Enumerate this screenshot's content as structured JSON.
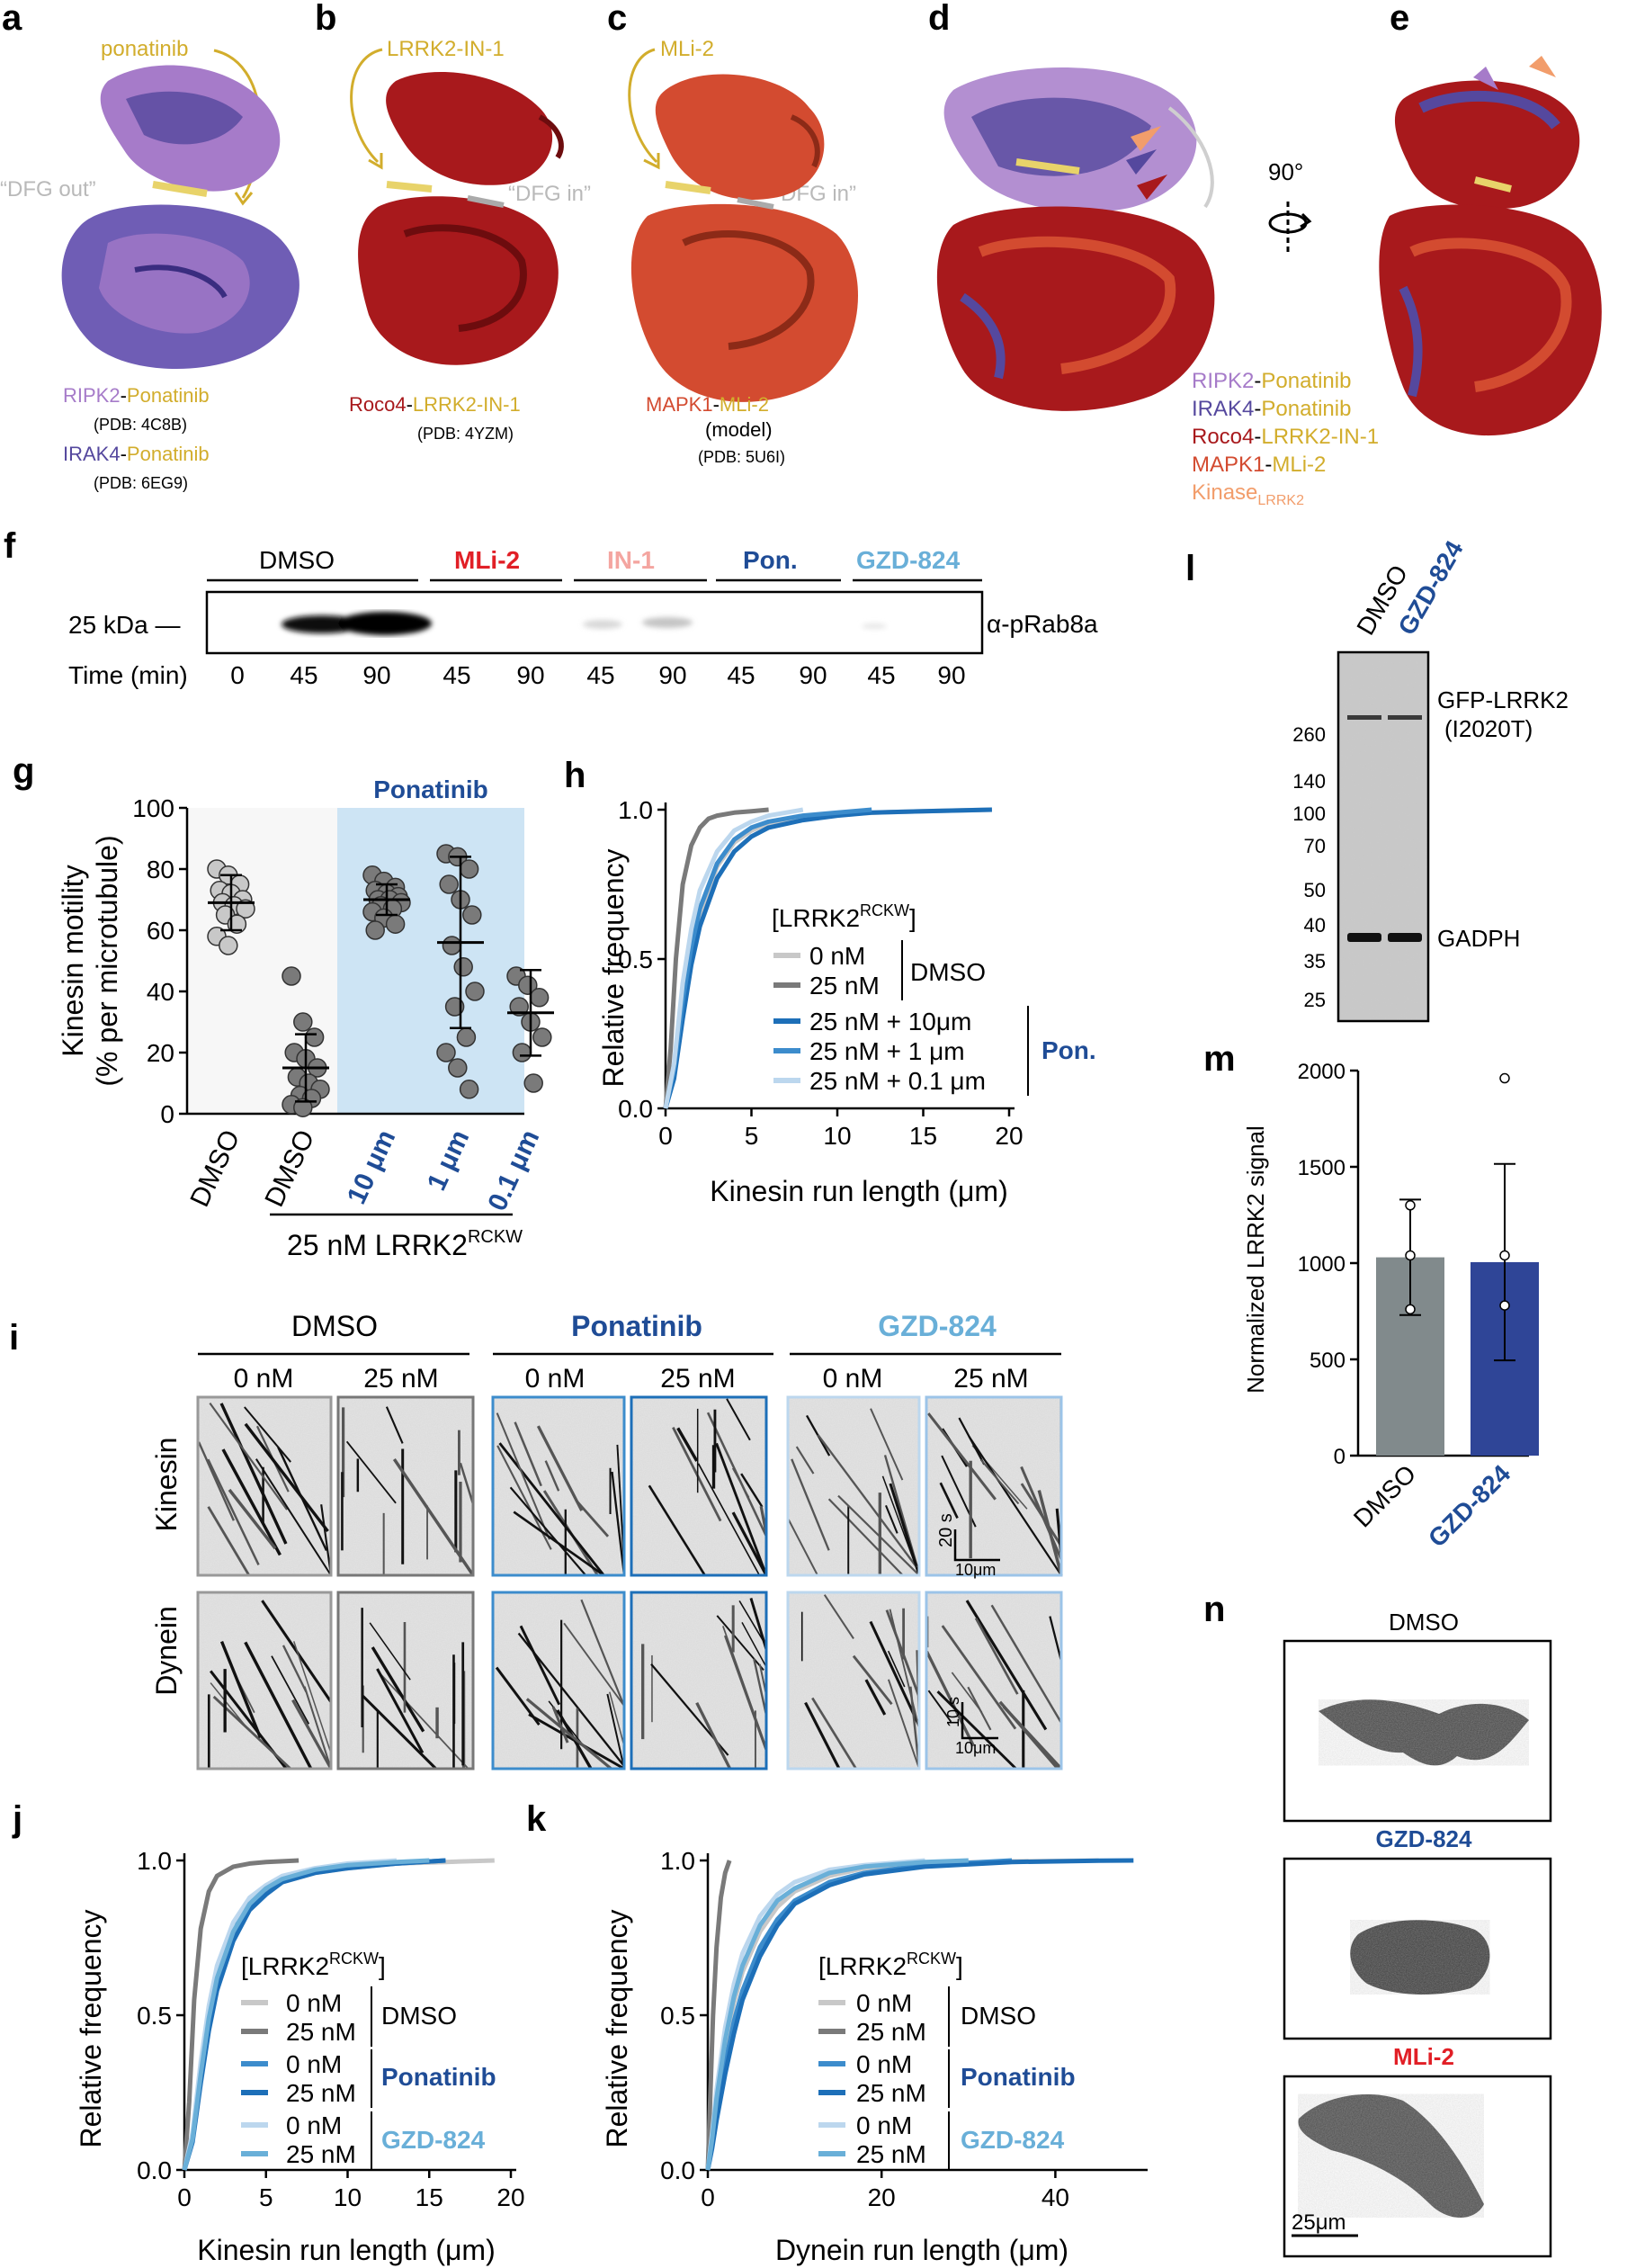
{
  "panels": {
    "a": {
      "letter": "a",
      "inhibitor": "ponatinib",
      "dfg": "“DFG out”",
      "cap1_k": "RIPK2",
      "cap1_i": "Ponatinib",
      "cap1_pdb": "(PDB: 4C8B)",
      "cap2_k": "IRAK4",
      "cap2_i": "Ponatinib",
      "cap2_pdb": "(PDB: 6EG9)"
    },
    "b": {
      "letter": "b",
      "inhibitor": "LRRK2-IN-1",
      "dfg": "“DFG in”",
      "cap_k": "Roco4",
      "cap_i": "LRRK2-IN-1",
      "cap_pdb": "(PDB: 4YZM)"
    },
    "c": {
      "letter": "c",
      "inhibitor": "MLi-2",
      "dfg": "“DFG in”",
      "cap_k": "MAPK1",
      "cap_i": "MLi-2",
      "cap_model": "(model)",
      "cap_pdb": "(PDB: 5U6I)"
    },
    "d": {
      "letter": "d",
      "rotation": "90°",
      "legend": [
        {
          "k": "RIPK2",
          "i": "Ponatinib"
        },
        {
          "k": "IRAK4",
          "i": "Ponatinib"
        },
        {
          "k": "Roco4",
          "i": "LRRK2-IN-1"
        },
        {
          "k": "MAPK1",
          "i": "MLi-2"
        },
        {
          "k": "Kinase",
          "sub": "LRRK2"
        }
      ]
    },
    "e": {
      "letter": "e"
    },
    "f": {
      "letter": "f",
      "groups": [
        "DMSO",
        "MLi-2",
        "IN-1",
        "Pon.",
        "GZD-824"
      ],
      "marker": "25 kDa —",
      "antibody": "α-pRab8a",
      "time_label": "Time (min)",
      "times": [
        "0",
        "45",
        "90",
        "45",
        "90",
        "45",
        "90",
        "45",
        "90",
        "45",
        "90"
      ]
    },
    "g": {
      "letter": "g",
      "header": "Ponatinib",
      "ylabel1": "Kinesin motility",
      "ylabel2": "(% per microtubule)",
      "xticks": [
        "DMSO",
        "DMSO",
        "10 μm",
        "1 μm",
        "0.1 μm"
      ],
      "group_label": "25 nM LRRK2",
      "group_sup": "RCKW"
    },
    "h": {
      "letter": "h",
      "xlabel": "Kinesin run length (μm)",
      "ylabel": "Relative frequency",
      "legend_title": "[LRRK2",
      "legend_sup": "RCKW",
      "legend_close": "]",
      "entries": [
        "0 nM",
        "25 nM",
        "25 nM + 10μm",
        "25 nM + 1 μm",
        "25 nM + 0.1 μm"
      ],
      "group1": "DMSO",
      "group2": "Pon."
    },
    "i": {
      "letter": "i",
      "groups": [
        "DMSO",
        "Ponatinib",
        "GZD-824"
      ],
      "concs": [
        "0 nM",
        "25 nM",
        "0 nM",
        "25 nM",
        "0 nM",
        "25 nM"
      ],
      "rows": [
        "Kinesin",
        "Dynein"
      ],
      "scale_k_t": "20 s",
      "scale_k_x": "10μm",
      "scale_d_t": "10 s",
      "scale_d_x": "10μm"
    },
    "j": {
      "letter": "j",
      "xlabel": "Kinesin run length (μm)",
      "ylabel": "Relative frequency",
      "legend_title": "[LRRK2",
      "legend_sup": "RCKW",
      "legend_close": "]",
      "entries": [
        "0 nM",
        "25 nM",
        "0 nM",
        "25 nM",
        "0 nM",
        "25 nM"
      ],
      "groups": [
        "DMSO",
        "Ponatinib",
        "GZD-824"
      ]
    },
    "k": {
      "letter": "k",
      "xlabel": "Dynein run length (μm)",
      "ylabel": "Relative frequency",
      "legend_title": "[LRRK2",
      "legend_sup": "RCKW",
      "legend_close": "]",
      "entries": [
        "0 nM",
        "25 nM",
        "0 nM",
        "25 nM",
        "0 nM",
        "25 nM"
      ],
      "groups": [
        "DMSO",
        "Ponatinib",
        "GZD-824"
      ]
    },
    "l": {
      "letter": "l",
      "lanes": [
        "DMSO",
        "GZD-824"
      ],
      "markers": [
        "260",
        "140",
        "100",
        "70",
        "50",
        "40",
        "35",
        "25"
      ],
      "band1a": "GFP-LRRK2",
      "band1b": "(I2020T)",
      "band2": "GADPH"
    },
    "m": {
      "letter": "m",
      "ylabel": "Normalized LRRK2 signal"
    },
    "n": {
      "letter": "n",
      "titles": [
        "DMSO",
        "GZD-824",
        "MLi-2"
      ],
      "scale": "25μm"
    }
  },
  "colors": {
    "ripk2": "#a67bc9",
    "irak4": "#55489e",
    "roco4": "#a8191c",
    "mapk1": "#d34b30",
    "kinase": "#f29d6b",
    "inhib": "#d2ad2c",
    "mli2": "#e11f26",
    "in1": "#f4a5a0",
    "pon": "#1f4c96",
    "gzd": "#69afd8",
    "lgray": "#c8c8c8",
    "dgray": "#7a7a7a",
    "blue1": "#1d6fb8",
    "blue2": "#3c8ccc",
    "blue3": "#bcd7ee"
  },
  "chart_data": [
    {
      "panel": "g",
      "type": "scatter",
      "categories": [
        "DMSO",
        "DMSO",
        "10 μm",
        "1 μm",
        "0.1 μm"
      ],
      "yticks": [
        "0",
        "20",
        "40",
        "60",
        "80",
        "100"
      ],
      "ylim": [
        0,
        100
      ],
      "means": [
        69,
        15,
        70,
        56,
        33
      ],
      "sd": [
        9,
        11,
        5,
        28,
        14
      ],
      "points": [
        [
          80,
          78,
          75,
          73,
          72,
          70,
          69,
          68,
          67,
          65,
          62,
          58,
          55
        ],
        [
          45,
          30,
          25,
          20,
          18,
          15,
          12,
          10,
          8,
          6,
          5,
          3,
          2
        ],
        [
          78,
          76,
          74,
          73,
          72,
          71,
          70,
          70,
          69,
          68,
          67,
          66,
          64,
          62,
          60
        ],
        [
          85,
          84,
          80,
          75,
          70,
          65,
          55,
          48,
          40,
          35,
          25,
          20,
          15,
          8
        ],
        [
          45,
          42,
          38,
          35,
          30,
          25,
          20,
          10
        ]
      ]
    },
    {
      "panel": "h",
      "type": "line",
      "xticks": [
        "0",
        "5",
        "10",
        "15",
        "20"
      ],
      "yticks": [
        "0.0",
        "0.5",
        "1.0"
      ],
      "xlim": [
        0,
        20
      ],
      "ylim": [
        0,
        1
      ],
      "series": [
        {
          "color": "lgray",
          "x": [
            0,
            0.5,
            1,
            1.5,
            2,
            3,
            4,
            5,
            6,
            8,
            10,
            13,
            16,
            19
          ],
          "y": [
            0,
            0.12,
            0.34,
            0.52,
            0.65,
            0.81,
            0.89,
            0.93,
            0.955,
            0.975,
            0.985,
            0.992,
            0.996,
            1
          ]
        },
        {
          "color": "dgray",
          "x": [
            0,
            0.3,
            0.6,
            1,
            1.5,
            2,
            2.5,
            3,
            4,
            5,
            6
          ],
          "y": [
            0,
            0.2,
            0.5,
            0.75,
            0.88,
            0.94,
            0.97,
            0.98,
            0.99,
            0.995,
            1
          ]
        },
        {
          "color": "blue1",
          "x": [
            0,
            0.5,
            1,
            1.5,
            2,
            3,
            4,
            5,
            6,
            8,
            10,
            12,
            15,
            19
          ],
          "y": [
            0,
            0.1,
            0.3,
            0.48,
            0.61,
            0.77,
            0.86,
            0.91,
            0.94,
            0.965,
            0.98,
            0.99,
            0.995,
            1
          ]
        },
        {
          "color": "blue2",
          "x": [
            0,
            0.5,
            1,
            1.5,
            2,
            3,
            4,
            5,
            6,
            8,
            10,
            12
          ],
          "y": [
            0,
            0.13,
            0.36,
            0.54,
            0.67,
            0.82,
            0.9,
            0.94,
            0.96,
            0.98,
            0.99,
            1
          ]
        },
        {
          "color": "blue3",
          "x": [
            0,
            0.5,
            1,
            1.5,
            2,
            3,
            4,
            5,
            6,
            7,
            8
          ],
          "y": [
            0,
            0.15,
            0.42,
            0.6,
            0.73,
            0.86,
            0.93,
            0.96,
            0.98,
            0.99,
            1
          ]
        }
      ]
    },
    {
      "panel": "j",
      "type": "line",
      "xticks": [
        "0",
        "5",
        "10",
        "15",
        "20"
      ],
      "yticks": [
        "0.0",
        "0.5",
        "1.0"
      ],
      "xlim": [
        0,
        20
      ],
      "ylim": [
        0,
        1
      ],
      "series": [
        {
          "color": "lgray",
          "x": [
            0,
            0.5,
            1,
            1.5,
            2,
            3,
            4,
            5,
            6,
            8,
            10,
            13,
            16,
            19
          ],
          "y": [
            0,
            0.1,
            0.3,
            0.47,
            0.6,
            0.76,
            0.85,
            0.9,
            0.93,
            0.96,
            0.975,
            0.99,
            0.995,
            1
          ]
        },
        {
          "color": "dgray",
          "x": [
            0,
            0.3,
            0.6,
            1,
            1.5,
            2,
            3,
            4,
            5,
            7
          ],
          "y": [
            0,
            0.22,
            0.55,
            0.78,
            0.9,
            0.95,
            0.98,
            0.99,
            0.995,
            1
          ]
        },
        {
          "color": "blue2",
          "x": [
            0,
            0.5,
            1,
            1.5,
            2,
            3,
            4,
            5,
            6,
            8,
            10,
            13,
            16
          ],
          "y": [
            0,
            0.11,
            0.32,
            0.5,
            0.62,
            0.78,
            0.86,
            0.91,
            0.94,
            0.965,
            0.98,
            0.99,
            1
          ]
        },
        {
          "color": "blue1",
          "x": [
            0,
            0.5,
            1,
            1.5,
            2,
            3,
            4,
            5,
            6,
            8,
            10,
            13,
            16
          ],
          "y": [
            0,
            0.09,
            0.28,
            0.45,
            0.58,
            0.74,
            0.84,
            0.89,
            0.93,
            0.96,
            0.975,
            0.99,
            1
          ]
        },
        {
          "color": "blue3",
          "x": [
            0,
            0.5,
            1,
            1.5,
            2,
            3,
            4,
            5,
            6,
            8,
            10,
            13
          ],
          "y": [
            0,
            0.12,
            0.35,
            0.53,
            0.66,
            0.8,
            0.88,
            0.92,
            0.95,
            0.975,
            0.99,
            1
          ]
        },
        {
          "color": "gzd",
          "x": [
            0,
            0.5,
            1,
            1.5,
            2,
            3,
            4,
            5,
            6,
            8,
            10,
            13,
            15
          ],
          "y": [
            0,
            0.1,
            0.31,
            0.49,
            0.62,
            0.77,
            0.86,
            0.91,
            0.94,
            0.97,
            0.985,
            0.995,
            1
          ]
        }
      ]
    },
    {
      "panel": "k",
      "type": "line",
      "xticks": [
        "0",
        "20",
        "40"
      ],
      "yticks": [
        "0.0",
        "0.5",
        "1.0"
      ],
      "xlim": [
        0,
        50
      ],
      "ylim": [
        0,
        1
      ],
      "series": [
        {
          "color": "lgray",
          "x": [
            0,
            0.5,
            1,
            2,
            3,
            4,
            6,
            8,
            10,
            14,
            18,
            25,
            35,
            45
          ],
          "y": [
            0,
            0.1,
            0.22,
            0.4,
            0.54,
            0.64,
            0.77,
            0.85,
            0.9,
            0.95,
            0.975,
            0.99,
            0.997,
            1
          ]
        },
        {
          "color": "dgray",
          "x": [
            0,
            0.3,
            0.6,
            1,
            1.5,
            2,
            2.5
          ],
          "y": [
            0,
            0.25,
            0.5,
            0.72,
            0.88,
            0.96,
            1
          ]
        },
        {
          "color": "blue2",
          "x": [
            0,
            0.5,
            1,
            2,
            3,
            4,
            6,
            8,
            10,
            14,
            18,
            25,
            35
          ],
          "y": [
            0,
            0.08,
            0.18,
            0.34,
            0.48,
            0.58,
            0.72,
            0.81,
            0.87,
            0.93,
            0.96,
            0.985,
            1
          ]
        },
        {
          "color": "blue1",
          "x": [
            0,
            0.5,
            1,
            2,
            3,
            4,
            6,
            8,
            10,
            14,
            18,
            25,
            35,
            45,
            49
          ],
          "y": [
            0,
            0.07,
            0.16,
            0.31,
            0.44,
            0.55,
            0.69,
            0.79,
            0.86,
            0.92,
            0.955,
            0.98,
            0.995,
            0.999,
            1
          ]
        },
        {
          "color": "blue3",
          "x": [
            0,
            0.5,
            1,
            2,
            3,
            4,
            6,
            8,
            10,
            14,
            18,
            25
          ],
          "y": [
            0,
            0.12,
            0.26,
            0.46,
            0.6,
            0.7,
            0.82,
            0.89,
            0.93,
            0.97,
            0.985,
            1
          ]
        },
        {
          "color": "gzd",
          "x": [
            0,
            0.5,
            1,
            2,
            3,
            4,
            6,
            8,
            10,
            14,
            18,
            25,
            30
          ],
          "y": [
            0,
            0.1,
            0.23,
            0.42,
            0.56,
            0.66,
            0.79,
            0.87,
            0.91,
            0.96,
            0.98,
            0.995,
            1
          ]
        }
      ]
    },
    {
      "panel": "m",
      "type": "bar",
      "categories": [
        "DMSO",
        "GZD-824"
      ],
      "values": [
        1030,
        1005
      ],
      "sd": [
        300,
        510
      ],
      "points": [
        [
          1300,
          1040,
          760
        ],
        [
          1960,
          1040,
          780
        ]
      ],
      "yticks": [
        "0",
        "500",
        "1000",
        "1500",
        "2000"
      ],
      "ylim": [
        0,
        2000
      ]
    }
  ]
}
